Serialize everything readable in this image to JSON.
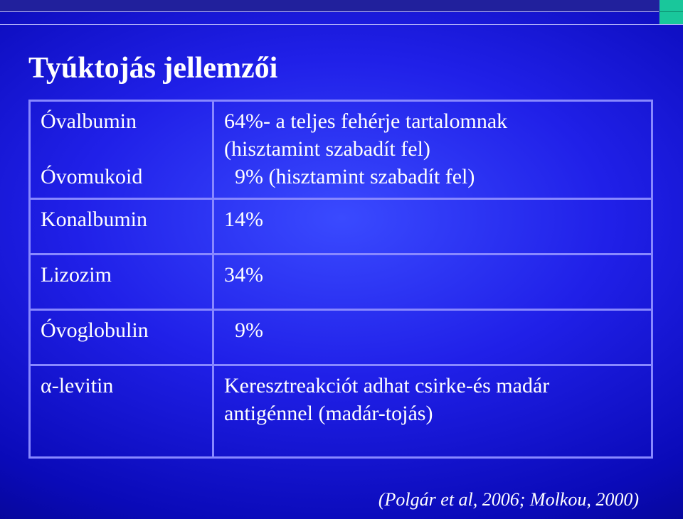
{
  "slide": {
    "title": "Tyúktojás jellemzői",
    "citation": "(Polgár et al, 2006; Molkou, 2000)",
    "background_gradient": {
      "type": "radial",
      "inner_color": "#3a4aff",
      "mid_color": "#0a0ab8",
      "outer_color": "#000033"
    },
    "topbar_color": "#21209c",
    "corner_accent_color": "#19c79b",
    "border_color": "#8888ff",
    "text_color": "#ffffff",
    "title_fontsize": 42,
    "body_fontsize": 30,
    "citation_fontsize": 26
  },
  "table": {
    "rows": [
      {
        "left_line1": "Óvalbumin",
        "left_line2": "Óvomukoid",
        "right_line1": "64%- a teljes fehérje tartalomnak",
        "right_line2": "(hisztamint szabadít fel)",
        "right_line3": "  9% (hisztamint szabadít fel)"
      },
      {
        "left": "Konalbumin",
        "right": "14%"
      },
      {
        "left": "Lizozim",
        "right": "34%"
      },
      {
        "left": "Óvoglobulin",
        "right": "  9%"
      },
      {
        "left": "α-levitin",
        "right_line1": "Keresztreakciót adhat csirke-és madár",
        "right_line2": "antigénnel (madár-tojás)"
      }
    ]
  }
}
